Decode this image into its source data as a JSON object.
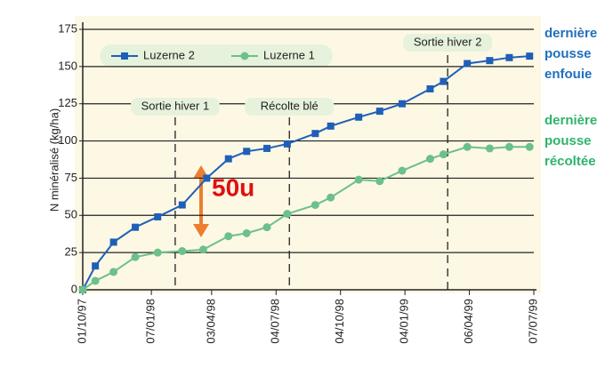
{
  "chart_data": {
    "type": "line",
    "y_label": "N minéralisé (kg/ha)",
    "xlim": [
      "01/10/97",
      "07/07/99"
    ],
    "xticks": [
      "01/10/97",
      "07/01/98",
      "03/04/98",
      "04/07/98",
      "04/10/98",
      "04/01/99",
      "06/04/99",
      "07/07/99"
    ],
    "ylim": [
      0,
      175
    ],
    "yticks": [
      0,
      25,
      50,
      75,
      100,
      125,
      150,
      175
    ],
    "grid": true,
    "series": [
      {
        "name": "Luzerne 2",
        "color": "#1f5fb8",
        "marker": "square",
        "x": [
          "01/10/97",
          "19/10/97",
          "14/11/97",
          "15/12/97",
          "16/01/98",
          "20/02/98",
          "27/03/98",
          "27/04/98",
          "23/05/98",
          "21/06/98",
          "20/07/98",
          "29/08/98",
          "20/09/98",
          "30/10/98",
          "29/11/98",
          "31/12/98",
          "09/02/99",
          "28/02/99",
          "03/04/99",
          "05/05/99",
          "02/06/99",
          "01/07/99"
        ],
        "values": [
          0,
          16,
          32,
          42,
          49,
          57,
          75,
          88,
          93,
          95,
          98,
          105,
          110,
          116,
          120,
          125,
          135,
          140,
          152,
          154,
          156,
          157
        ]
      },
      {
        "name": "Luzerne 1",
        "color": "#6cc08a",
        "marker": "circle",
        "x": [
          "01/10/97",
          "19/10/97",
          "14/11/97",
          "15/12/97",
          "16/01/98",
          "20/02/98",
          "22/03/98",
          "27/04/98",
          "23/05/98",
          "21/06/98",
          "20/07/98",
          "29/08/98",
          "20/09/98",
          "30/10/98",
          "29/11/98",
          "31/12/98",
          "09/02/99",
          "28/02/99",
          "03/04/99",
          "05/05/99",
          "02/06/99",
          "01/07/99"
        ],
        "values": [
          0,
          6,
          12,
          22,
          25,
          26,
          27,
          36,
          38,
          42,
          51,
          57,
          62,
          74,
          73,
          80,
          88,
          91,
          96,
          95,
          96,
          96
        ]
      }
    ],
    "events": [
      {
        "label": "Sortie hiver 1",
        "x": "10/02/98"
      },
      {
        "label": "Récolte blé",
        "x": "23/07/98"
      },
      {
        "label": "Sortie hiver 2",
        "x": "06/03/99"
      }
    ],
    "arrow_label": "50u",
    "side_notes": [
      {
        "lines": [
          "dernière",
          "pousse",
          "enfouie"
        ],
        "color": "#1f6fbf"
      },
      {
        "lines": [
          "dernière",
          "pousse",
          "récoltée"
        ],
        "color": "#2fb36b"
      }
    ]
  }
}
